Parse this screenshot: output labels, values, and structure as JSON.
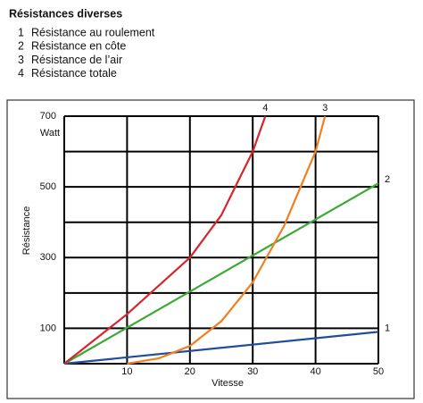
{
  "chart_data": {
    "type": "line",
    "title": "Résistances diverses",
    "xlabel": "Vitesse",
    "ylabel": "Résistance",
    "y_unit": "Watt",
    "xlim": [
      0,
      50
    ],
    "ylim": [
      0,
      700
    ],
    "xticks": [
      {
        "value": 0,
        "label": null
      },
      10,
      20,
      30,
      40,
      50
    ],
    "yticks": [
      {
        "value": 0,
        "label": null
      },
      100,
      {
        "value": 200,
        "label": null
      },
      300,
      {
        "value": 400,
        "label": null
      },
      500,
      {
        "value": 600,
        "label": null
      },
      700
    ],
    "grid": true,
    "series": [
      {
        "label": "1",
        "name": "Résistance au roulement",
        "color": "#1f4e9c",
        "x": [
          0,
          50
        ],
        "values": [
          0,
          90
        ]
      },
      {
        "label": "2",
        "name": "Résistance en côte",
        "color": "#3aaa35",
        "x": [
          0,
          50
        ],
        "values": [
          0,
          510
        ]
      },
      {
        "label": "3",
        "name": "Résistance de l’air",
        "color": "#f07f1e",
        "x": [
          10,
          15,
          20,
          25,
          30,
          35,
          40,
          41.5
        ],
        "values": [
          0,
          15,
          50,
          120,
          230,
          390,
          600,
          700
        ]
      },
      {
        "label": "4",
        "name": "Résistance totale",
        "color": "#d7262b",
        "x": [
          0,
          10,
          20,
          25,
          30,
          32
        ],
        "values": [
          0,
          140,
          300,
          420,
          600,
          700
        ]
      }
    ]
  }
}
